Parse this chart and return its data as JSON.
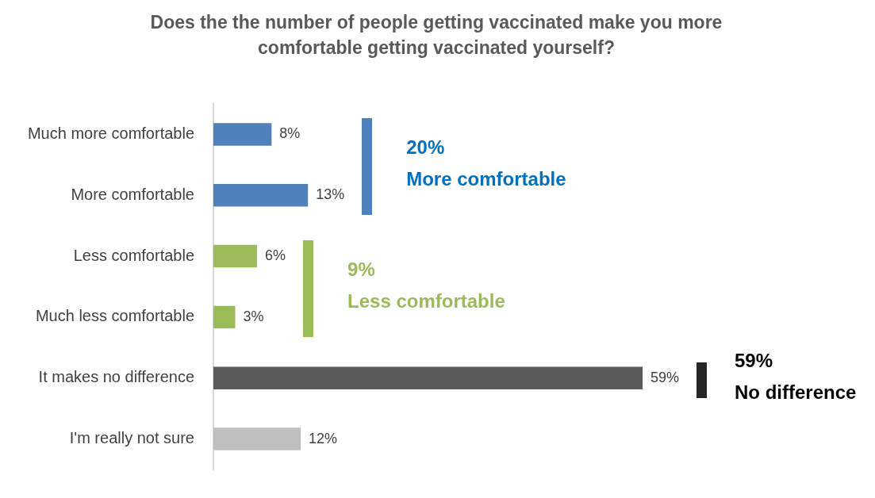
{
  "chart_data": {
    "type": "bar",
    "orientation": "horizontal",
    "title": "Does the the number of people getting vaccinated make you more comfortable getting vaccinated yourself?",
    "categories": [
      "Much more comfortable",
      "More comfortable",
      "Less comfortable",
      "Much less comfortable",
      "It makes no difference",
      "I'm really not sure"
    ],
    "values": [
      8,
      13,
      6,
      3,
      59,
      12
    ],
    "colors": [
      "#4f81bd",
      "#4f81bd",
      "#9bbb59",
      "#9bbb59",
      "#595959",
      "#bfbfbf"
    ],
    "value_labels": [
      "8%",
      "13%",
      "6%",
      "3%",
      "59%",
      "12%"
    ],
    "annotations": [
      "20%",
      "More comfortable",
      "9%",
      "Less comfortable",
      "59%",
      "No difference"
    ],
    "grid": false,
    "legend": false
  }
}
